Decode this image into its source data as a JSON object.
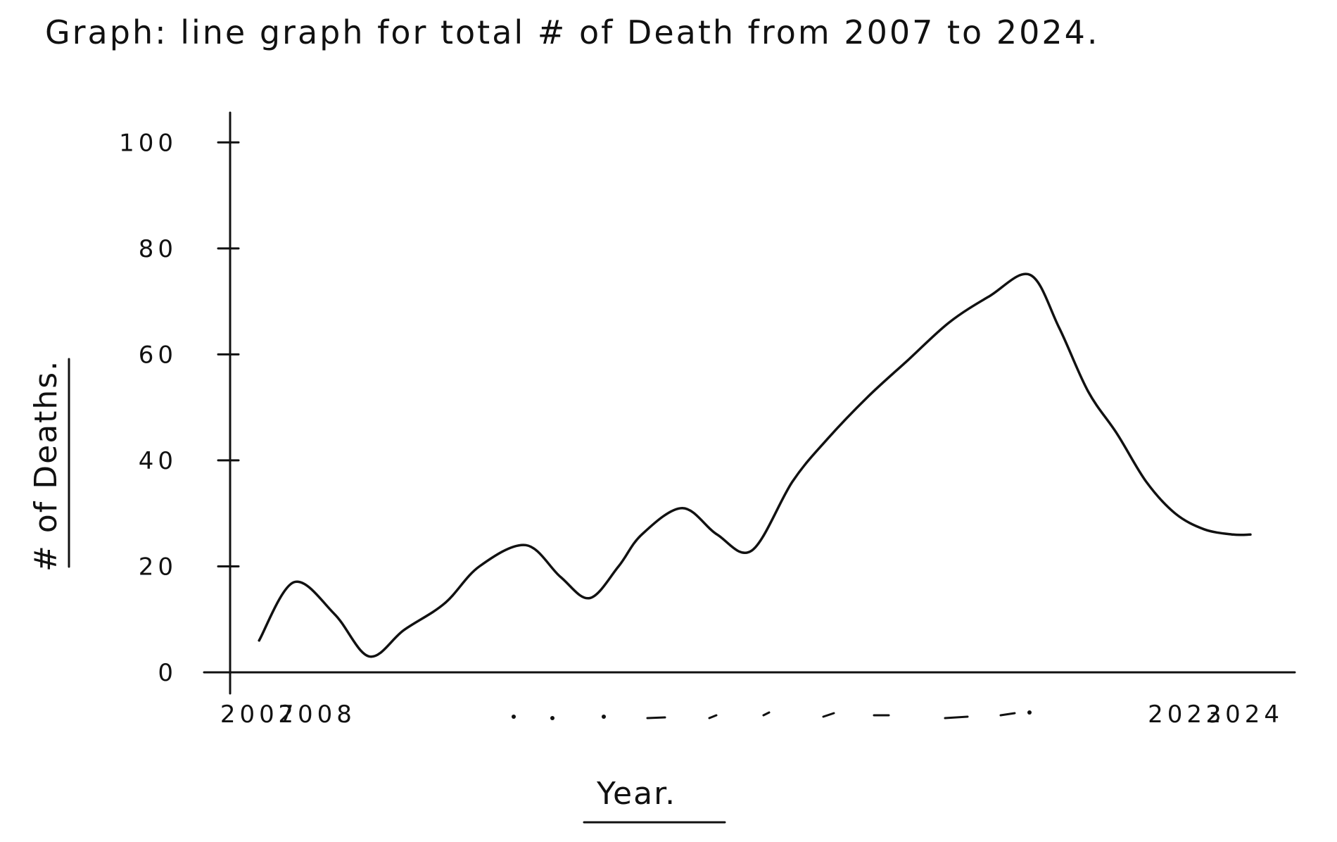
{
  "chart_data": {
    "type": "line",
    "title": "Graph: line graph for total # of Death from 2007 to 2024.",
    "xlabel": "Year.",
    "ylabel": "# of Deaths.",
    "x_tick_labels": [
      "2007",
      "2008",
      "2023",
      "2024"
    ],
    "y_tick_labels": [
      "0",
      "20",
      "40",
      "60",
      "80",
      "100"
    ],
    "ylim": [
      0,
      110
    ],
    "xlim": [
      2006.5,
      2024.5
    ],
    "grid": false,
    "legend": "none",
    "series": [
      {
        "x": [
          2007.0,
          2007.6,
          2008.3,
          2008.9,
          2009.5,
          2010.2,
          2010.8,
          2011.6,
          2012.2,
          2012.7,
          2013.2,
          2013.6,
          2014.3,
          2014.9,
          2015.5,
          2016.2,
          2016.8,
          2017.5,
          2018.2,
          2018.9,
          2019.6,
          2020.3,
          2020.8,
          2021.3,
          2021.8,
          2022.3,
          2022.8,
          2023.3,
          2023.8,
          2024.1
        ],
        "y": [
          6,
          17,
          11,
          3,
          8,
          13,
          20,
          24,
          18,
          14,
          20,
          26,
          31,
          26,
          23,
          36,
          44,
          52,
          59,
          66,
          71,
          75,
          65,
          53,
          45,
          36,
          30,
          27,
          26,
          26
        ]
      }
    ]
  }
}
